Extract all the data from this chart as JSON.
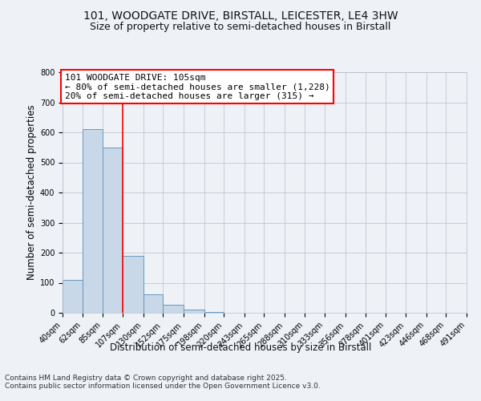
{
  "title_line1": "101, WOODGATE DRIVE, BIRSTALL, LEICESTER, LE4 3HW",
  "title_line2": "Size of property relative to semi-detached houses in Birstall",
  "xlabel": "Distribution of semi-detached houses by size in Birstall",
  "ylabel": "Number of semi-detached properties",
  "bin_labels": [
    "40sqm",
    "62sqm",
    "85sqm",
    "107sqm",
    "130sqm",
    "152sqm",
    "175sqm",
    "198sqm",
    "220sqm",
    "243sqm",
    "265sqm",
    "288sqm",
    "310sqm",
    "333sqm",
    "356sqm",
    "378sqm",
    "401sqm",
    "423sqm",
    "446sqm",
    "468sqm",
    "491sqm"
  ],
  "bin_edges": [
    40,
    62,
    85,
    107,
    130,
    152,
    175,
    198,
    220,
    243,
    265,
    288,
    310,
    333,
    356,
    378,
    401,
    423,
    446,
    468,
    491
  ],
  "bar_values": [
    110,
    611,
    549,
    189,
    62,
    28,
    10,
    4,
    0,
    0,
    0,
    0,
    0,
    0,
    0,
    0,
    0,
    0,
    0,
    0
  ],
  "bar_color": "#c8d8e8",
  "bar_edge_color": "#6699bb",
  "property_line_x": 107,
  "annotation_title": "101 WOODGATE DRIVE: 105sqm",
  "annotation_line1": "← 80% of semi-detached houses are smaller (1,228)",
  "annotation_line2": "20% of semi-detached houses are larger (315) →",
  "ylim": [
    0,
    800
  ],
  "yticks": [
    0,
    100,
    200,
    300,
    400,
    500,
    600,
    700,
    800
  ],
  "footer_line1": "Contains HM Land Registry data © Crown copyright and database right 2025.",
  "footer_line2": "Contains public sector information licensed under the Open Government Licence v3.0.",
  "bg_color": "#eef2f7",
  "plot_bg_color": "#eef2f7",
  "grid_color": "#bbbbcc",
  "title_fontsize": 10,
  "subtitle_fontsize": 9,
  "axis_label_fontsize": 8.5,
  "tick_fontsize": 7,
  "annotation_fontsize": 8,
  "footer_fontsize": 6.5
}
